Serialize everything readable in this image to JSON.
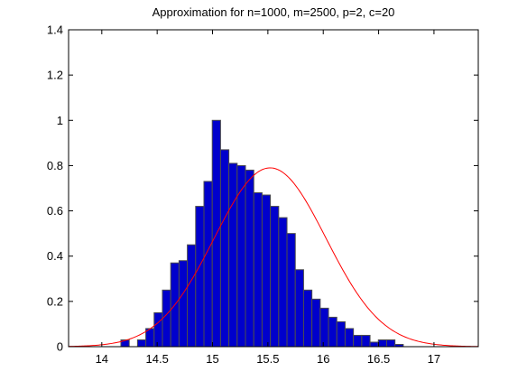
{
  "chart_data": {
    "type": "bar",
    "title": "Approximation for n=1000, m=2500, p=2, c=20",
    "xlabel": "",
    "ylabel": "",
    "xlim": [
      13.7,
      17.4
    ],
    "ylim": [
      0,
      1.4
    ],
    "grid": false,
    "xticks": [
      14,
      14.5,
      15,
      15.5,
      16,
      16.5,
      17
    ],
    "xtick_labels": [
      "14",
      "14.5",
      "15",
      "15.5",
      "16",
      "16.5",
      "17"
    ],
    "yticks": [
      0,
      0.2,
      0.4,
      0.6,
      0.8,
      1,
      1.2,
      1.4
    ],
    "ytick_labels": [
      "0",
      "0.2",
      "0.4",
      "0.6",
      "0.8",
      "1",
      "1.2",
      "1.4"
    ],
    "histogram": {
      "name": "",
      "bin_width": 0.075,
      "first_bin_center": 14.21,
      "values": [
        0.03,
        0.0,
        0.03,
        0.08,
        0.15,
        0.25,
        0.37,
        0.38,
        0.45,
        0.62,
        0.73,
        1.0,
        0.87,
        0.81,
        0.8,
        0.78,
        0.68,
        0.67,
        0.62,
        0.57,
        0.5,
        0.34,
        0.25,
        0.21,
        0.17,
        0.13,
        0.11,
        0.08,
        0.05,
        0.05,
        0.02,
        0.03,
        0.03,
        0.01,
        0.0
      ]
    },
    "curve": {
      "name": "",
      "type": "normal-density",
      "mean": 15.52,
      "std": 0.505,
      "x_range": [
        13.7,
        17.4
      ]
    },
    "colors": {
      "bar_fill": "#0000cc",
      "bar_edge": "#4d4d4d",
      "curve": "#ff0000"
    }
  }
}
